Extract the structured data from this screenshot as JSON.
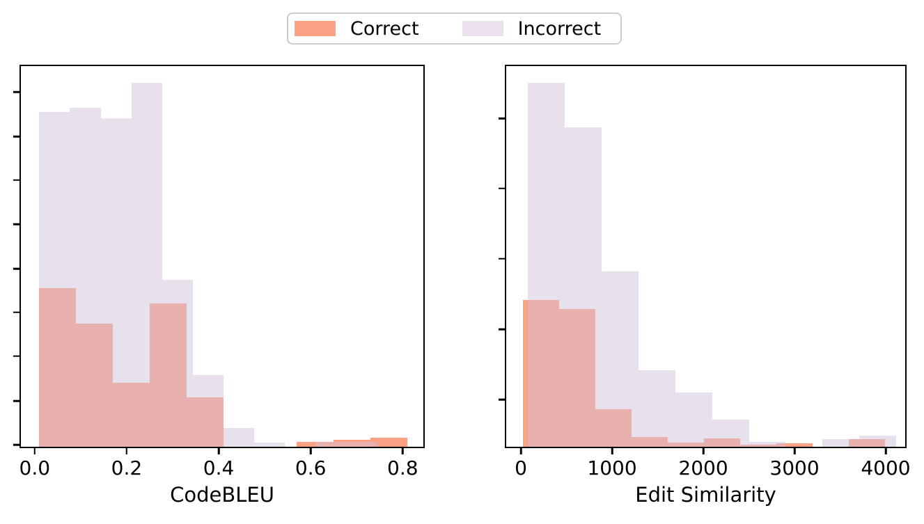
{
  "legend": {
    "items": [
      {
        "label": "Correct",
        "color": "#fca183"
      },
      {
        "label": "Incorrect",
        "color": "#eae1ed"
      }
    ]
  },
  "colors": {
    "correct_fill": "#fca183",
    "incorrect_overlay": "rgba(211,193,219,0.5)",
    "incorrect_on_white": "#eae1ed",
    "overlap_blend": "#e8b1af",
    "axis": "#000000",
    "legend_border": "#cccccc",
    "background": "#ffffff"
  },
  "chart_data": [
    {
      "type": "histogram",
      "xlabel": "CodeBLEU",
      "ylabel": "",
      "xlim": [
        -0.033,
        0.848
      ],
      "xticks": [
        0.0,
        0.2,
        0.4,
        0.6,
        0.8
      ],
      "xtick_labels": [
        "0.0",
        "0.2",
        "0.4",
        "0.6",
        "0.8"
      ],
      "yticks": {
        "count": 9,
        "labels_visible": false
      },
      "ylim_normalized": [
        0,
        1
      ],
      "note": "overlaid histograms; bar heights given as fraction of y-axis height (y tick labels not shown in image)",
      "legend_position": "top-center-of-figure",
      "series": [
        {
          "name": "Correct",
          "bin_start": 0.01,
          "bin_width": 0.08,
          "heights": [
            0.415,
            0.322,
            0.167,
            0.375,
            0.129,
            0,
            0,
            0.012,
            0.018,
            0.024
          ]
        },
        {
          "name": "Incorrect",
          "bin_start": 0.01,
          "bin_width": 0.0667,
          "heights": [
            0.877,
            0.888,
            0.86,
            0.953,
            0.437,
            0.187,
            0.049,
            0.011,
            0,
            0.013,
            0.012,
            0
          ]
        }
      ]
    },
    {
      "type": "histogram",
      "xlabel": "Edit Similarity",
      "ylabel": "",
      "xlim": [
        -176,
        4229
      ],
      "xticks": [
        0,
        1000,
        2000,
        3000,
        4000
      ],
      "xtick_labels": [
        "0",
        "1000",
        "2000",
        "3000",
        "4000"
      ],
      "yticks": {
        "count": 5,
        "labels_visible": false
      },
      "ylim_normalized": [
        0,
        1
      ],
      "note": "overlaid histograms; bar heights given as fraction of y-axis height (y tick labels not shown in image)",
      "series": [
        {
          "name": "Correct",
          "bin_start": 23,
          "bin_width": 397,
          "heights": [
            0.385,
            0.361,
            0.098,
            0.025,
            0.011,
            0.022,
            0.005,
            0.009,
            0,
            0.02
          ]
        },
        {
          "name": "Incorrect",
          "bin_start": 76,
          "bin_width": 404,
          "heights": [
            0.953,
            0.837,
            0.459,
            0.201,
            0.143,
            0.071,
            0.013,
            0,
            0.02,
            0.029
          ]
        }
      ]
    }
  ]
}
